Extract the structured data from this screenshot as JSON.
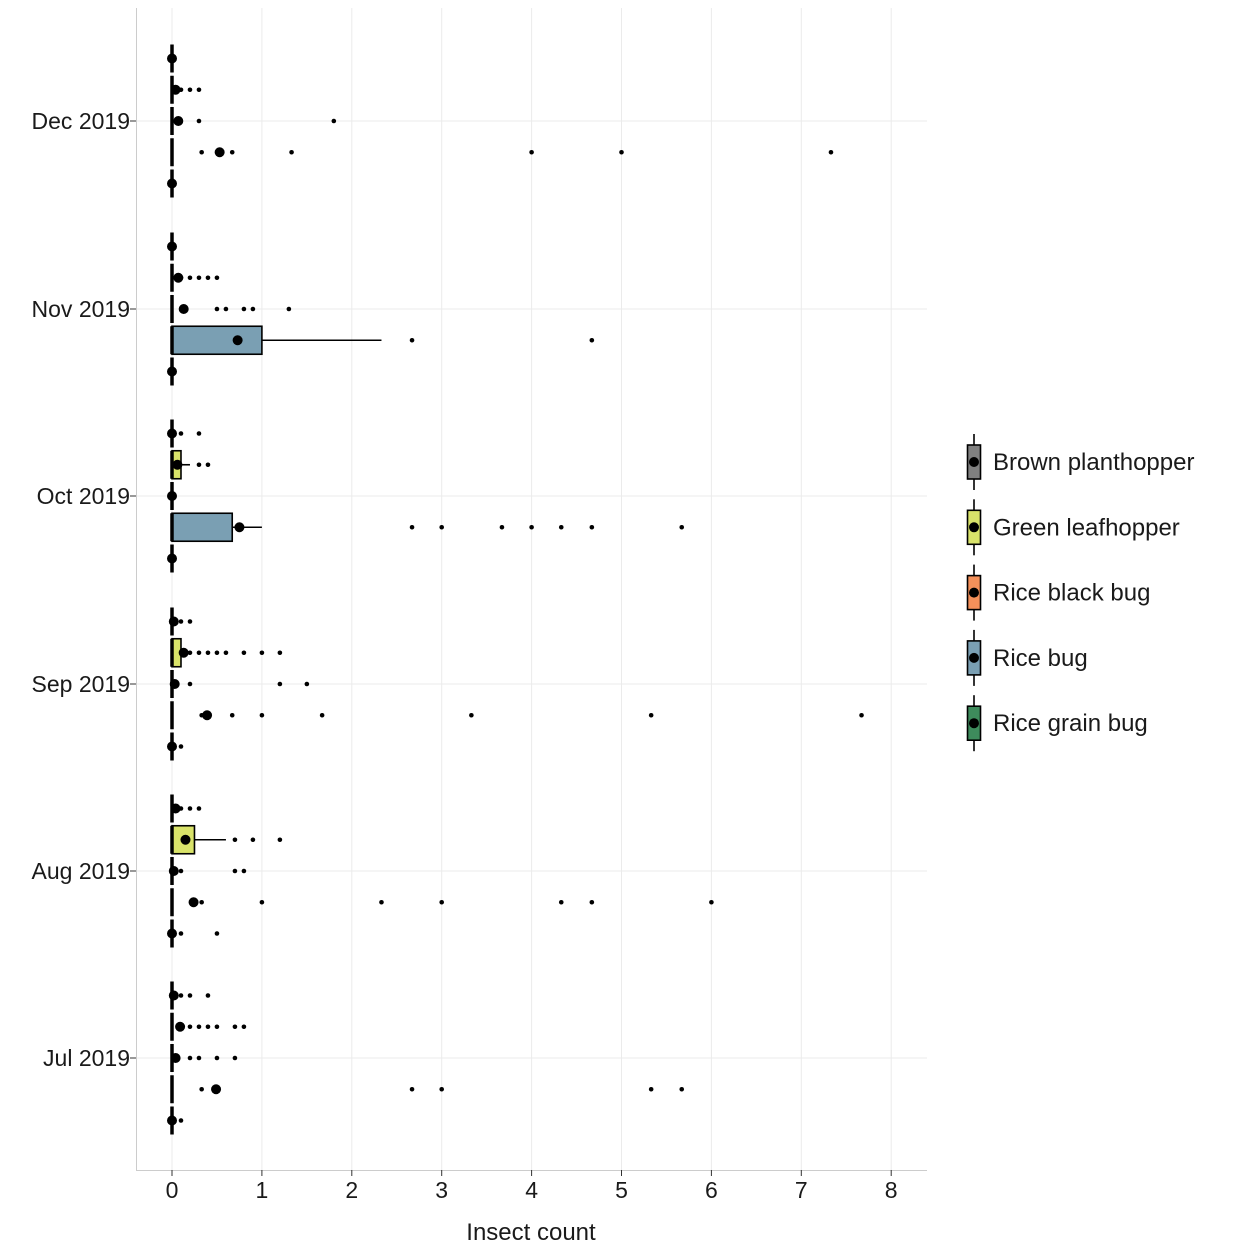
{
  "chart_data": {
    "type": "boxplot",
    "orientation": "horizontal",
    "xlabel": "Insect count",
    "ylabel": "",
    "xlim": [
      -0.4,
      8.4
    ],
    "x_ticks": [
      0,
      1,
      2,
      3,
      4,
      5,
      6,
      7,
      8
    ],
    "grid": true,
    "legend_position": "right",
    "categories": [
      "Jul 2019",
      "Aug 2019",
      "Sep 2019",
      "Oct 2019",
      "Nov 2019",
      "Dec 2019"
    ],
    "series": [
      {
        "name": "Brown planthopper",
        "color": "#808080"
      },
      {
        "name": "Green leafhopper",
        "color": "#d9e36a"
      },
      {
        "name": "Rice black bug",
        "color": "#f4905a"
      },
      {
        "name": "Rice bug",
        "color": "#7a9fb3"
      },
      {
        "name": "Rice grain bug",
        "color": "#3e8b5c"
      }
    ],
    "groups": [
      {
        "category": "Jul 2019",
        "boxes": [
          {
            "series": "Brown planthopper",
            "q1": 0,
            "median": 0,
            "q3": 0,
            "whisker_low": 0,
            "whisker_high": 0,
            "mean": 0.02,
            "outliers": [
              0.1,
              0.2,
              0.4
            ]
          },
          {
            "series": "Green leafhopper",
            "q1": 0,
            "median": 0,
            "q3": 0,
            "whisker_low": 0,
            "whisker_high": 0,
            "mean": 0.09,
            "outliers": [
              0.1,
              0.2,
              0.3,
              0.4,
              0.5,
              0.7,
              0.8
            ]
          },
          {
            "series": "Rice black bug",
            "q1": 0,
            "median": 0,
            "q3": 0,
            "whisker_low": 0,
            "whisker_high": 0,
            "mean": 0.04,
            "outliers": [
              0.2,
              0.3,
              0.5,
              0.7
            ]
          },
          {
            "series": "Rice bug",
            "q1": 0,
            "median": 0,
            "q3": 0,
            "whisker_low": 0,
            "whisker_high": 0,
            "mean": 0.49,
            "outliers": [
              0.33,
              2.67,
              3.0,
              5.33,
              5.67
            ]
          },
          {
            "series": "Rice grain bug",
            "q1": 0,
            "median": 0,
            "q3": 0,
            "whisker_low": 0,
            "whisker_high": 0,
            "mean": 0.0,
            "outliers": [
              0.1
            ]
          }
        ]
      },
      {
        "category": "Aug 2019",
        "boxes": [
          {
            "series": "Brown planthopper",
            "q1": 0,
            "median": 0,
            "q3": 0,
            "whisker_low": 0,
            "whisker_high": 0,
            "mean": 0.04,
            "outliers": [
              0.1,
              0.2,
              0.3
            ]
          },
          {
            "series": "Green leafhopper",
            "q1": 0,
            "median": 0.1,
            "q3": 0.25,
            "whisker_low": 0,
            "whisker_high": 0.6,
            "mean": 0.15,
            "outliers": [
              0.7,
              0.9,
              1.2
            ]
          },
          {
            "series": "Rice black bug",
            "q1": 0,
            "median": 0,
            "q3": 0,
            "whisker_low": 0,
            "whisker_high": 0,
            "mean": 0.02,
            "outliers": [
              0.1,
              0.7,
              0.8
            ]
          },
          {
            "series": "Rice bug",
            "q1": 0,
            "median": 0,
            "q3": 0,
            "whisker_low": 0,
            "whisker_high": 0,
            "mean": 0.24,
            "outliers": [
              0.33,
              1.0,
              2.33,
              3.0,
              4.33,
              4.67,
              6.0
            ]
          },
          {
            "series": "Rice grain bug",
            "q1": 0,
            "median": 0,
            "q3": 0,
            "whisker_low": 0,
            "whisker_high": 0,
            "mean": 0.0,
            "outliers": [
              0.1,
              0.5
            ]
          }
        ]
      },
      {
        "category": "Sep 2019",
        "boxes": [
          {
            "series": "Brown planthopper",
            "q1": 0,
            "median": 0,
            "q3": 0,
            "whisker_low": 0,
            "whisker_high": 0,
            "mean": 0.02,
            "outliers": [
              0.1,
              0.2
            ]
          },
          {
            "series": "Green leafhopper",
            "q1": 0,
            "median": 0,
            "q3": 0.1,
            "whisker_low": 0,
            "whisker_high": 0.1,
            "mean": 0.13,
            "outliers": [
              0.2,
              0.3,
              0.4,
              0.5,
              0.6,
              0.8,
              1.0,
              1.2
            ]
          },
          {
            "series": "Rice black bug",
            "q1": 0,
            "median": 0,
            "q3": 0,
            "whisker_low": 0,
            "whisker_high": 0,
            "mean": 0.03,
            "outliers": [
              0.2,
              1.2,
              1.5
            ]
          },
          {
            "series": "Rice bug",
            "q1": 0,
            "median": 0,
            "q3": 0,
            "whisker_low": 0,
            "whisker_high": 0,
            "mean": 0.39,
            "outliers": [
              0.33,
              0.67,
              1.0,
              1.67,
              3.33,
              5.33,
              7.67
            ]
          },
          {
            "series": "Rice grain bug",
            "q1": 0,
            "median": 0,
            "q3": 0,
            "whisker_low": 0,
            "whisker_high": 0,
            "mean": 0.0,
            "outliers": [
              0.1
            ]
          }
        ]
      },
      {
        "category": "Oct 2019",
        "boxes": [
          {
            "series": "Brown planthopper",
            "q1": 0,
            "median": 0,
            "q3": 0,
            "whisker_low": 0,
            "whisker_high": 0,
            "mean": 0.0,
            "outliers": [
              0.1,
              0.3
            ]
          },
          {
            "series": "Green leafhopper",
            "q1": 0,
            "median": 0,
            "q3": 0.1,
            "whisker_low": 0,
            "whisker_high": 0.2,
            "mean": 0.06,
            "outliers": [
              0.3,
              0.4
            ]
          },
          {
            "series": "Rice black bug",
            "q1": 0,
            "median": 0,
            "q3": 0,
            "whisker_low": 0,
            "whisker_high": 0,
            "mean": 0.0,
            "outliers": []
          },
          {
            "series": "Rice bug",
            "q1": 0,
            "median": 0.33,
            "q3": 0.67,
            "whisker_low": 0,
            "whisker_high": 1.0,
            "mean": 0.75,
            "outliers": [
              2.67,
              3.0,
              3.67,
              4.0,
              4.33,
              4.67,
              5.67
            ]
          },
          {
            "series": "Rice grain bug",
            "q1": 0,
            "median": 0,
            "q3": 0,
            "whisker_low": 0,
            "whisker_high": 0,
            "mean": 0.0,
            "outliers": []
          }
        ]
      },
      {
        "category": "Nov 2019",
        "boxes": [
          {
            "series": "Brown planthopper",
            "q1": 0,
            "median": 0,
            "q3": 0,
            "whisker_low": 0,
            "whisker_high": 0,
            "mean": 0.0,
            "outliers": []
          },
          {
            "series": "Green leafhopper",
            "q1": 0,
            "median": 0,
            "q3": 0,
            "whisker_low": 0,
            "whisker_high": 0,
            "mean": 0.07,
            "outliers": [
              0.1,
              0.2,
              0.3,
              0.4,
              0.5
            ]
          },
          {
            "series": "Rice black bug",
            "q1": 0,
            "median": 0,
            "q3": 0,
            "whisker_low": 0,
            "whisker_high": 0,
            "mean": 0.13,
            "outliers": [
              0.5,
              0.6,
              0.8,
              0.9,
              1.3
            ]
          },
          {
            "series": "Rice bug",
            "q1": 0,
            "median": 0.33,
            "q3": 1.0,
            "whisker_low": 0,
            "whisker_high": 2.33,
            "mean": 0.73,
            "outliers": [
              2.67,
              4.67
            ]
          },
          {
            "series": "Rice grain bug",
            "q1": 0,
            "median": 0,
            "q3": 0,
            "whisker_low": 0,
            "whisker_high": 0,
            "mean": 0.0,
            "outliers": []
          }
        ]
      },
      {
        "category": "Dec 2019",
        "boxes": [
          {
            "series": "Brown planthopper",
            "q1": 0,
            "median": 0,
            "q3": 0,
            "whisker_low": 0,
            "whisker_high": 0,
            "mean": 0.0,
            "outliers": []
          },
          {
            "series": "Green leafhopper",
            "q1": 0,
            "median": 0,
            "q3": 0,
            "whisker_low": 0,
            "whisker_high": 0,
            "mean": 0.04,
            "outliers": [
              0.1,
              0.2,
              0.3
            ]
          },
          {
            "series": "Rice black bug",
            "q1": 0,
            "median": 0,
            "q3": 0,
            "whisker_low": 0,
            "whisker_high": 0,
            "mean": 0.07,
            "outliers": [
              0.3,
              1.8
            ]
          },
          {
            "series": "Rice bug",
            "q1": 0,
            "median": 0,
            "q3": 0,
            "whisker_low": 0,
            "whisker_high": 0,
            "mean": 0.53,
            "outliers": [
              0.33,
              0.67,
              1.33,
              4.0,
              5.0,
              7.33
            ]
          },
          {
            "series": "Rice grain bug",
            "q1": 0,
            "median": 0,
            "q3": 0,
            "whisker_low": 0,
            "whisker_high": 0,
            "mean": 0.0,
            "outliers": []
          }
        ]
      }
    ]
  }
}
